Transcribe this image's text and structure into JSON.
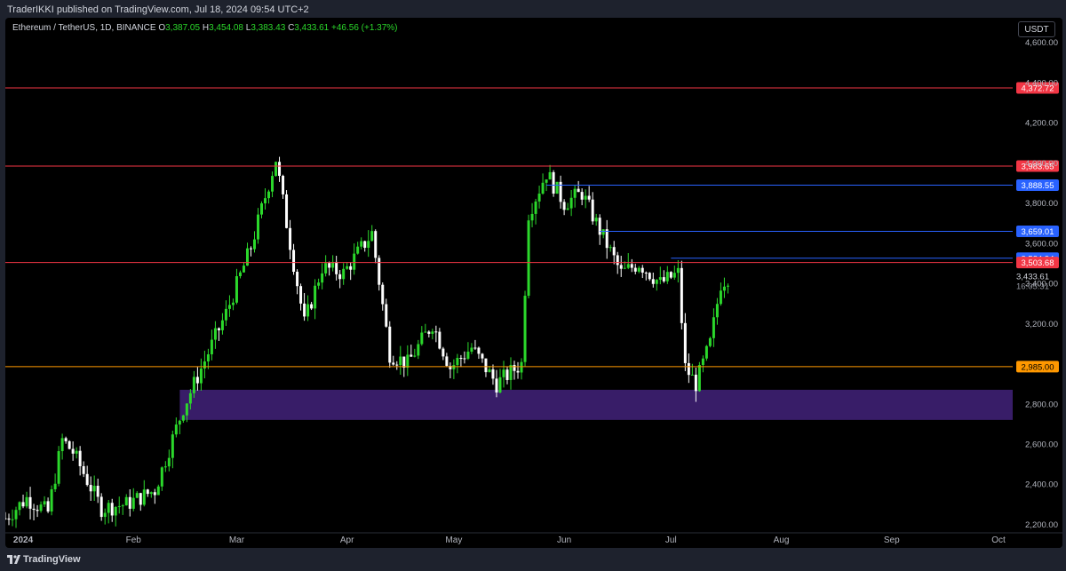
{
  "header": {
    "published": "TraderIKKI published on TradingView.com, Jul 18, 2024 09:54 UTC+2"
  },
  "symbol": {
    "title": "Ethereum / TetherUS, 1D, BINANCE",
    "o_label": "O",
    "o": "3,387.05",
    "h_label": "H",
    "h": "3,454.08",
    "l_label": "L",
    "l": "3,383.43",
    "c_label": "C",
    "c": "3,433.61",
    "change": "+46.56 (+1.37%)"
  },
  "currency": "USDT",
  "footer": {
    "brand": "TradingView"
  },
  "colors": {
    "up": "#26a69a",
    "down": "#ffffff",
    "resistance": "#f23645",
    "level_blue": "#2962ff",
    "support": "#ff9800",
    "zone": "#3b1f6e",
    "up_candle": "#2bd82b",
    "down_candle": "#ffffff"
  },
  "chart_data": {
    "type": "candlestick",
    "symbol": "ETH/USDT",
    "timeframe": "1D",
    "exchange": "BINANCE",
    "y_range": [
      2180,
      4700
    ],
    "x_range": [
      "2023-12-27",
      "2024-10-05"
    ],
    "y_ticks": [
      "2,200.00",
      "2,400.00",
      "2,600.00",
      "2,800.00",
      "3,200.00",
      "3,400.00",
      "3,600.00",
      "3,800.00",
      "4,000.00",
      "4,200.00",
      "4,400.00",
      "4,600.00"
    ],
    "y_tick_values": [
      2200,
      2400,
      2600,
      2800,
      3200,
      3400,
      3600,
      3800,
      4000,
      4200,
      4400,
      4600
    ],
    "x_ticks": [
      {
        "label": "2024",
        "date": "2024-01-01"
      },
      {
        "label": "Feb",
        "date": "2024-02-01"
      },
      {
        "label": "Mar",
        "date": "2024-03-01"
      },
      {
        "label": "Apr",
        "date": "2024-04-01"
      },
      {
        "label": "May",
        "date": "2024-05-01"
      },
      {
        "label": "Jun",
        "date": "2024-06-01"
      },
      {
        "label": "Jul",
        "date": "2024-07-01"
      },
      {
        "label": "Aug",
        "date": "2024-08-01"
      },
      {
        "label": "Sep",
        "date": "2024-09-01"
      },
      {
        "label": "Oct",
        "date": "2024-10-01"
      }
    ],
    "horizontal_levels": [
      {
        "value": 4372.72,
        "label": "4,372.72",
        "color": "#f23645",
        "start": "2023-12-27"
      },
      {
        "value": 3983.65,
        "label": "3,983.65",
        "color": "#f23645",
        "start": "2023-12-27"
      },
      {
        "value": 3888.55,
        "label": "3,888.55",
        "color": "#2962ff",
        "start": "2024-05-27"
      },
      {
        "value": 3659.01,
        "label": "3,659.01",
        "color": "#2962ff",
        "start": "2024-06-11"
      },
      {
        "value": 3524.94,
        "label": "3,524.94",
        "color": "#2962ff",
        "start": "2024-07-01"
      },
      {
        "value": 3503.68,
        "label": "3,503.68",
        "color": "#f23645",
        "start": "2023-12-27"
      },
      {
        "value": 2985.0,
        "label": "2,985.00",
        "color": "#ff9800",
        "start": "2023-12-27"
      }
    ],
    "zone": {
      "from": 2720,
      "to": 2870,
      "start": "2024-02-14",
      "color": "#3b1f6e"
    },
    "last_price": {
      "value": 3433.61,
      "label": "3,433.61",
      "countdown": "16:05:31"
    },
    "candle_path": [
      [
        "2023-12-27",
        2230
      ],
      [
        "2024-01-02",
        2330
      ],
      [
        "2024-01-08",
        2260
      ],
      [
        "2024-01-12",
        2620
      ],
      [
        "2024-01-15",
        2560
      ],
      [
        "2024-01-23",
        2280
      ],
      [
        "2024-01-30",
        2300
      ],
      [
        "2024-02-07",
        2370
      ],
      [
        "2024-02-15",
        2780
      ],
      [
        "2024-02-27",
        3250
      ],
      [
        "2024-03-05",
        3580
      ],
      [
        "2024-03-12",
        4020
      ],
      [
        "2024-03-15",
        3700
      ],
      [
        "2024-03-20",
        3200
      ],
      [
        "2024-03-25",
        3480
      ],
      [
        "2024-03-31",
        3450
      ],
      [
        "2024-04-08",
        3650
      ],
      [
        "2024-04-13",
        3050
      ],
      [
        "2024-04-18",
        3000
      ],
      [
        "2024-04-25",
        3200
      ],
      [
        "2024-04-30",
        2980
      ],
      [
        "2024-05-06",
        3080
      ],
      [
        "2024-05-13",
        2900
      ],
      [
        "2024-05-20",
        3000
      ],
      [
        "2024-05-22",
        3750
      ],
      [
        "2024-05-27",
        3950
      ],
      [
        "2024-06-01",
        3800
      ],
      [
        "2024-06-06",
        3850
      ],
      [
        "2024-06-10",
        3700
      ],
      [
        "2024-06-17",
        3450
      ],
      [
        "2024-06-22",
        3500
      ],
      [
        "2024-06-28",
        3400
      ],
      [
        "2024-07-03",
        3450
      ],
      [
        "2024-07-05",
        2980
      ],
      [
        "2024-07-08",
        2900
      ],
      [
        "2024-07-12",
        3100
      ],
      [
        "2024-07-15",
        3400
      ],
      [
        "2024-07-17",
        3433
      ]
    ]
  }
}
